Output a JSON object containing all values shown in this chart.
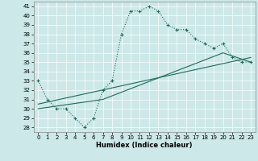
{
  "xlabel": "Humidex (Indice chaleur)",
  "bg_color": "#cce8e8",
  "line_color": "#1a6b5a",
  "xlim": [
    -0.5,
    23.5
  ],
  "ylim": [
    27.5,
    41.5
  ],
  "xticks": [
    0,
    1,
    2,
    3,
    4,
    5,
    6,
    7,
    8,
    9,
    10,
    11,
    12,
    13,
    14,
    15,
    16,
    17,
    18,
    19,
    20,
    21,
    22,
    23
  ],
  "yticks": [
    28,
    29,
    30,
    31,
    32,
    33,
    34,
    35,
    36,
    37,
    38,
    39,
    40,
    41
  ],
  "curve1_x": [
    0,
    1,
    2,
    3,
    4,
    5,
    6,
    7,
    8,
    9,
    10,
    11,
    12,
    13,
    14,
    15,
    16,
    17,
    18,
    19,
    20,
    21,
    22,
    23
  ],
  "curve1_y": [
    33,
    31,
    30,
    30,
    29,
    28,
    29,
    32,
    33,
    38,
    40.5,
    40.5,
    41,
    40.5,
    39,
    38.5,
    38.5,
    37.5,
    37,
    36.5,
    37,
    35.5,
    35,
    35
  ],
  "curve2_x": [
    0,
    23
  ],
  "curve2_y": [
    30.5,
    35.5
  ],
  "curve3_x": [
    0,
    7,
    20,
    23
  ],
  "curve3_y": [
    30,
    31,
    36,
    35
  ]
}
